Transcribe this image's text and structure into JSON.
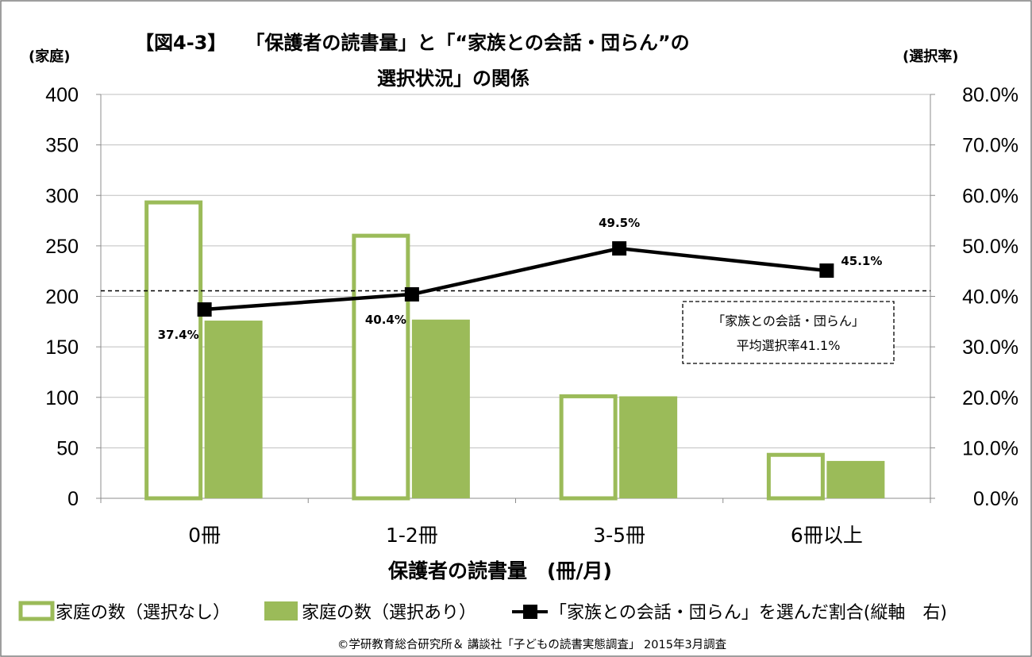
{
  "chart_data": {
    "type": "bar",
    "title_line1": "【図4‐3】　　「保護者の読書量」と「“家族との会話・団らん”の",
    "title_line2": "選択状況」の関係",
    "categories": [
      "0冊",
      "1-2冊",
      "3-5冊",
      "6冊以上"
    ],
    "xlabel": "保護者の読書量　(冊/月)",
    "ylabel_left": "(家庭)",
    "ylabel_right": "(選択率)",
    "ylim_left": [
      0,
      400
    ],
    "ylim_right": [
      0,
      0.8
    ],
    "left_ticks": [
      "0",
      "50",
      "100",
      "150",
      "200",
      "250",
      "300",
      "350",
      "400"
    ],
    "right_ticks": [
      "0.0%",
      "10.0%",
      "20.0%",
      "30.0%",
      "40.0%",
      "50.0%",
      "60.0%",
      "70.0%",
      "80.0%"
    ],
    "grid": true,
    "legend_position": "bottom",
    "series": [
      {
        "name": "家庭の数（選択なし）",
        "kind": "bar",
        "axis": "left",
        "values": [
          295,
          262,
          103,
          45
        ],
        "style": "outline",
        "color": "#9bbb59"
      },
      {
        "name": "家庭の数（選択あり）",
        "kind": "bar",
        "axis": "left",
        "values": [
          176,
          177,
          101,
          37
        ],
        "style": "filled",
        "color": "#9bbb59"
      },
      {
        "name": "「家族との会話・団らん」を選んだ割合(縦軸　右)",
        "kind": "line",
        "axis": "right",
        "values": [
          0.374,
          0.404,
          0.495,
          0.451
        ],
        "labels": [
          "37.4%",
          "40.4%",
          "49.5%",
          "45.1%"
        ],
        "color": "#000000"
      }
    ],
    "reference_line": {
      "axis": "right",
      "value": 0.411,
      "note_line1": "「家族との会話・団らん」",
      "note_line2": "平均選択率41.1%"
    },
    "source": "©学研教育総合研究所＆ 講談社「子どもの読書実態調査」 2015年3月調査"
  }
}
